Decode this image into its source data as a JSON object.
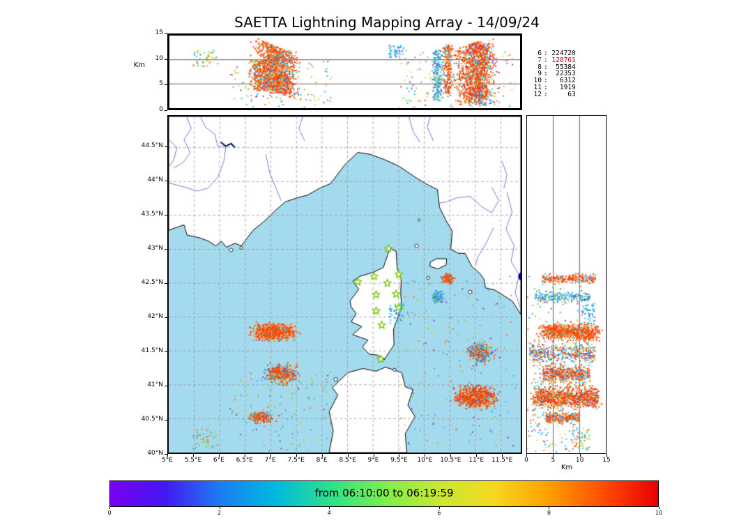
{
  "title": "SAETTA Lightning Mapping Array - 14/09/24",
  "axes": {
    "alt_label": "Km",
    "km_label_right": "Km",
    "alt_ticks": [
      {
        "v": 0,
        "t": "0"
      },
      {
        "v": 5,
        "t": "5"
      },
      {
        "v": 10,
        "t": "10"
      },
      {
        "v": 15,
        "t": "15"
      }
    ],
    "alt_gridlines": [
      5,
      10
    ],
    "lat_ticks": [
      {
        "v": 44.5,
        "t": "44.5°N"
      },
      {
        "v": 44.0,
        "t": "44°N"
      },
      {
        "v": 43.5,
        "t": "43.5°N"
      },
      {
        "v": 43.0,
        "t": "43°N"
      },
      {
        "v": 42.5,
        "t": "42.5°N"
      },
      {
        "v": 42.0,
        "t": "42°N"
      },
      {
        "v": 41.5,
        "t": "41.5°N"
      },
      {
        "v": 41.0,
        "t": "41°N"
      },
      {
        "v": 40.5,
        "t": "40.5°N"
      },
      {
        "v": 40.0,
        "t": "40°N"
      }
    ],
    "lon_ticks": [
      {
        "v": 5.0,
        "t": "5°E"
      },
      {
        "v": 5.5,
        "t": "5.5°E"
      },
      {
        "v": 6.0,
        "t": "6°E"
      },
      {
        "v": 6.5,
        "t": "6.5°E"
      },
      {
        "v": 7.0,
        "t": "7°E"
      },
      {
        "v": 7.5,
        "t": "7.5°E"
      },
      {
        "v": 8.0,
        "t": "8°E"
      },
      {
        "v": 8.5,
        "t": "8.5°E"
      },
      {
        "v": 9.0,
        "t": "9°E"
      },
      {
        "v": 9.5,
        "t": "9.5°E"
      },
      {
        "v": 10.0,
        "t": "10°E"
      },
      {
        "v": 10.5,
        "t": "10.5°E"
      },
      {
        "v": 11.0,
        "t": "11°E"
      },
      {
        "v": 11.5,
        "t": "11.5°E"
      }
    ]
  },
  "stats": [
    {
      "level": "6",
      "count": "224720",
      "color": "#000000"
    },
    {
      "level": "7",
      "count": "128761",
      "color": "#dd0000"
    },
    {
      "level": "8",
      "count": "55384",
      "color": "#000000"
    },
    {
      "level": "9",
      "count": "22353",
      "color": "#000000"
    },
    {
      "level": "10",
      "count": "6312",
      "color": "#000000"
    },
    {
      "level": "11",
      "count": "1919",
      "color": "#000000"
    },
    {
      "level": "12",
      "count": "63",
      "color": "#000000"
    }
  ],
  "colorbar": {
    "label": "from 06:10:00 to 06:19:59",
    "ticks": [
      {
        "v": 0,
        "t": "0"
      },
      {
        "v": 2,
        "t": "2"
      },
      {
        "v": 4,
        "t": "4"
      },
      {
        "v": 6,
        "t": "6"
      },
      {
        "v": 8,
        "t": "8"
      },
      {
        "v": 10,
        "t": "10"
      }
    ],
    "stops": [
      "#7a00f0",
      "#4418f2",
      "#1c7cf2",
      "#00b8e0",
      "#2ce08c",
      "#7cee4e",
      "#c8e832",
      "#f6d820",
      "#ffa000",
      "#ff4c00",
      "#e80000"
    ]
  },
  "chart_data": {
    "type": "scatter",
    "title": "SAETTA Lightning Mapping Array - 14/09/24",
    "time_window": {
      "from": "06:10:00",
      "to": "06:19:59"
    },
    "map_extent": {
      "lon": [
        5.0,
        11.89
      ],
      "lat": [
        40.0,
        44.96
      ]
    },
    "alt_extent_km": [
      0,
      15
    ],
    "source_counts": [
      [
        "6",
        224720
      ],
      [
        "7",
        128761
      ],
      [
        "8",
        55384
      ],
      [
        "9",
        22353
      ],
      [
        "10",
        6312
      ],
      [
        "11",
        1919
      ],
      [
        "12",
        63
      ]
    ],
    "stations_lonlat": [
      [
        9.3,
        43.01
      ],
      [
        8.7,
        42.52
      ],
      [
        9.02,
        42.6
      ],
      [
        9.28,
        42.5
      ],
      [
        9.5,
        42.63
      ],
      [
        9.06,
        42.33
      ],
      [
        9.45,
        42.34
      ],
      [
        9.06,
        42.09
      ],
      [
        9.5,
        42.14
      ],
      [
        9.17,
        41.88
      ],
      [
        9.15,
        41.38
      ]
    ],
    "clusters": [
      {
        "name": "west-corsica-main",
        "clon": 7.05,
        "dlon": 0.55,
        "clat": 41.78,
        "dlat": 0.16,
        "alt": [
          3.5,
          13
        ],
        "slant": -5,
        "n": 900,
        "colors": [
          [
            "#ff4500",
            0.66
          ],
          [
            "#ff7733",
            0.12
          ],
          [
            "#e8c87a",
            0.12
          ],
          [
            "#33bbee",
            0.06
          ],
          [
            "#9acd32",
            0.04
          ]
        ]
      },
      {
        "name": "west-corsica-south",
        "clon": 7.2,
        "dlon": 0.4,
        "clat": 41.16,
        "dlat": 0.18,
        "alt": [
          3,
          12
        ],
        "slant": 0,
        "n": 520,
        "colors": [
          [
            "#ff4500",
            0.52
          ],
          [
            "#e8c87a",
            0.16
          ],
          [
            "#33bbee",
            0.16
          ],
          [
            "#2277dd",
            0.06
          ],
          [
            "#9acd32",
            0.05
          ],
          [
            "#8844cc",
            0.05
          ]
        ]
      },
      {
        "name": "southwest",
        "clon": 6.8,
        "dlon": 0.32,
        "clat": 40.52,
        "dlat": 0.11,
        "alt": [
          3.5,
          10
        ],
        "slant": 0,
        "n": 260,
        "colors": [
          [
            "#ff4500",
            0.62
          ],
          [
            "#e8c87a",
            0.14
          ],
          [
            "#33bbee",
            0.12
          ],
          [
            "#8844cc",
            0.06
          ],
          [
            "#9acd32",
            0.06
          ]
        ]
      },
      {
        "name": "elba-storm",
        "clon": 10.47,
        "dlon": 0.15,
        "clat": 42.57,
        "dlat": 0.09,
        "alt": [
          3,
          13
        ],
        "slant": 0,
        "n": 240,
        "colors": [
          [
            "#ff4500",
            0.72
          ],
          [
            "#e8c87a",
            0.14
          ],
          [
            "#33bbee",
            0.14
          ]
        ]
      },
      {
        "name": "blue-column",
        "clon": 10.27,
        "dlon": 0.14,
        "clat": 42.3,
        "dlat": 0.11,
        "alt": [
          1.5,
          12
        ],
        "slant": 0,
        "n": 200,
        "colors": [
          [
            "#33bbee",
            0.42
          ],
          [
            "#2277dd",
            0.34
          ],
          [
            "#9acd32",
            0.1
          ],
          [
            "#e8c87a",
            0.14
          ]
        ]
      },
      {
        "name": "east-multicolor",
        "clon": 11.1,
        "dlon": 0.32,
        "clat": 41.47,
        "dlat": 0.2,
        "alt": [
          0.5,
          13
        ],
        "slant": 0,
        "n": 430,
        "colors": [
          [
            "#ff4500",
            0.26
          ],
          [
            "#e8c87a",
            0.2
          ],
          [
            "#33bbee",
            0.18
          ],
          [
            "#8844cc",
            0.16
          ],
          [
            "#2277dd",
            0.1
          ],
          [
            "#9acd32",
            0.1
          ]
        ]
      },
      {
        "name": "east-main",
        "clon": 11.0,
        "dlon": 0.52,
        "clat": 40.82,
        "dlat": 0.21,
        "alt": [
          1.5,
          13.5
        ],
        "slant": 3,
        "n": 1050,
        "colors": [
          [
            "#ff4500",
            0.58
          ],
          [
            "#e8c87a",
            0.16
          ],
          [
            "#ee2200",
            0.1
          ],
          [
            "#33bbee",
            0.08
          ],
          [
            "#9acd32",
            0.04
          ],
          [
            "#8844cc",
            0.04
          ]
        ]
      },
      {
        "name": "scatter-southwest",
        "clon": 7.2,
        "dlon": 1.0,
        "clat": 40.6,
        "dlat": 0.6,
        "alt": [
          0,
          10
        ],
        "slant": 0,
        "n": 130,
        "uniform": true,
        "colors": [
          [
            "#33bbee",
            0.3
          ],
          [
            "#9acd32",
            0.25
          ],
          [
            "#e8c87a",
            0.2
          ],
          [
            "#ff7733",
            0.15
          ],
          [
            "#8844cc",
            0.1
          ]
        ]
      },
      {
        "name": "scatter-east",
        "clon": 10.6,
        "dlon": 1.2,
        "clat": 41.3,
        "dlat": 1.3,
        "alt": [
          0,
          12
        ],
        "slant": 0,
        "n": 170,
        "uniform": true,
        "colors": [
          [
            "#33bbee",
            0.32
          ],
          [
            "#9acd32",
            0.2
          ],
          [
            "#e8c87a",
            0.2
          ],
          [
            "#ff7733",
            0.14
          ],
          [
            "#8844cc",
            0.14
          ]
        ]
      },
      {
        "name": "farwest-specks",
        "clon": 5.72,
        "dlon": 0.25,
        "clat": 40.2,
        "dlat": 0.15,
        "alt": [
          8.5,
          12
        ],
        "slant": 0,
        "n": 45,
        "uniform": true,
        "colors": [
          [
            "#9acd32",
            0.4
          ],
          [
            "#33bbee",
            0.3
          ],
          [
            "#ff7733",
            0.3
          ]
        ]
      },
      {
        "name": "corsica-east-specks",
        "clon": 9.46,
        "dlon": 0.15,
        "clat": 42.05,
        "dlat": 0.15,
        "alt": [
          10.5,
          13
        ],
        "slant": 0,
        "n": 45,
        "uniform": true,
        "colors": [
          [
            "#33bbee",
            0.7
          ],
          [
            "#2277dd",
            0.3
          ]
        ]
      }
    ]
  },
  "geo": {
    "sea_color": "#a4daee",
    "land_color": "#ffffff",
    "coast_color": "#000000",
    "river_color": "#5353cf",
    "lake_color": "#000099",
    "mainland": [
      [
        5.0,
        43.28
      ],
      [
        5.18,
        43.33
      ],
      [
        5.3,
        43.36
      ],
      [
        5.36,
        43.21
      ],
      [
        5.6,
        43.17
      ],
      [
        5.78,
        43.12
      ],
      [
        5.92,
        43.05
      ],
      [
        6.03,
        43.12
      ],
      [
        6.13,
        43.03
      ],
      [
        6.3,
        43.09
      ],
      [
        6.42,
        43.05
      ],
      [
        6.65,
        43.28
      ],
      [
        6.85,
        43.4
      ],
      [
        7.1,
        43.58
      ],
      [
        7.28,
        43.7
      ],
      [
        7.52,
        43.76
      ],
      [
        7.72,
        43.8
      ],
      [
        7.95,
        43.9
      ],
      [
        8.17,
        43.97
      ],
      [
        8.45,
        44.25
      ],
      [
        8.7,
        44.43
      ],
      [
        8.95,
        44.4
      ],
      [
        9.2,
        44.33
      ],
      [
        9.5,
        44.23
      ],
      [
        9.83,
        44.06
      ],
      [
        10.05,
        43.96
      ],
      [
        10.26,
        43.88
      ],
      [
        10.3,
        43.62
      ],
      [
        10.43,
        43.42
      ],
      [
        10.55,
        43.27
      ],
      [
        10.52,
        43.0
      ],
      [
        10.67,
        42.94
      ],
      [
        10.8,
        42.94
      ],
      [
        10.93,
        42.75
      ],
      [
        11.08,
        42.65
      ],
      [
        11.17,
        42.56
      ],
      [
        11.2,
        42.43
      ],
      [
        11.38,
        42.4
      ],
      [
        11.55,
        42.32
      ],
      [
        11.73,
        42.23
      ],
      [
        11.89,
        42.04
      ],
      [
        11.89,
        44.96
      ],
      [
        5.0,
        44.96
      ]
    ],
    "corsica": [
      [
        9.345,
        43.01
      ],
      [
        9.45,
        42.97
      ],
      [
        9.47,
        42.72
      ],
      [
        9.55,
        42.56
      ],
      [
        9.54,
        42.34
      ],
      [
        9.56,
        42.15
      ],
      [
        9.4,
        41.82
      ],
      [
        9.41,
        41.59
      ],
      [
        9.22,
        41.37
      ],
      [
        9.08,
        41.44
      ],
      [
        8.93,
        41.45
      ],
      [
        8.79,
        41.56
      ],
      [
        8.9,
        41.66
      ],
      [
        8.6,
        41.74
      ],
      [
        8.78,
        41.86
      ],
      [
        8.57,
        41.93
      ],
      [
        8.67,
        42.05
      ],
      [
        8.57,
        42.15
      ],
      [
        8.55,
        42.24
      ],
      [
        8.72,
        42.41
      ],
      [
        8.6,
        42.53
      ],
      [
        8.74,
        42.6
      ],
      [
        9.0,
        42.66
      ],
      [
        9.2,
        42.73
      ],
      [
        9.3,
        42.95
      ]
    ],
    "sardinia": [
      [
        8.14,
        40.0
      ],
      [
        8.22,
        40.32
      ],
      [
        8.14,
        40.6
      ],
      [
        8.31,
        40.85
      ],
      [
        8.2,
        40.96
      ],
      [
        8.51,
        41.18
      ],
      [
        8.8,
        41.24
      ],
      [
        9.06,
        41.2
      ],
      [
        9.24,
        41.26
      ],
      [
        9.56,
        41.18
      ],
      [
        9.63,
        40.97
      ],
      [
        9.78,
        40.93
      ],
      [
        9.68,
        40.7
      ],
      [
        9.82,
        40.53
      ],
      [
        9.63,
        40.28
      ],
      [
        9.66,
        40.0
      ]
    ],
    "elba": [
      [
        10.11,
        42.75
      ],
      [
        10.27,
        42.71
      ],
      [
        10.43,
        42.77
      ],
      [
        10.44,
        42.86
      ],
      [
        10.24,
        42.86
      ],
      [
        10.12,
        42.81
      ]
    ],
    "islands": [
      [
        9.85,
        43.05,
        0.035
      ],
      [
        9.9,
        43.43,
        0.02
      ],
      [
        10.08,
        42.58,
        0.03
      ],
      [
        10.31,
        42.33,
        0.025
      ],
      [
        10.9,
        42.37,
        0.035
      ],
      [
        6.22,
        42.99,
        0.035
      ],
      [
        6.42,
        43.02,
        0.028
      ],
      [
        9.42,
        41.22,
        0.03
      ],
      [
        8.27,
        41.08,
        0.035
      ]
    ],
    "lakes": [
      [
        11.93,
        42.6,
        0.09
      ]
    ],
    "lake_lines": [
      [
        [
          6.02,
          44.58
        ],
        [
          6.12,
          44.52
        ],
        [
          6.22,
          44.56
        ],
        [
          6.3,
          44.5
        ]
      ]
    ],
    "rivers": [
      [
        [
          5.35,
          44.96
        ],
        [
          5.44,
          44.78
        ],
        [
          5.3,
          44.62
        ],
        [
          5.42,
          44.42
        ],
        [
          5.28,
          44.28
        ],
        [
          5.1,
          44.2
        ]
      ],
      [
        [
          5.0,
          44.62
        ],
        [
          5.16,
          44.5
        ],
        [
          5.1,
          44.32
        ],
        [
          5.0,
          44.22
        ]
      ],
      [
        [
          5.0,
          43.98
        ],
        [
          5.3,
          43.92
        ],
        [
          5.56,
          43.86
        ],
        [
          5.76,
          43.9
        ],
        [
          5.96,
          44.06
        ],
        [
          6.08,
          44.3
        ],
        [
          6.12,
          44.52
        ]
      ],
      [
        [
          5.62,
          44.96
        ],
        [
          5.72,
          44.8
        ],
        [
          5.9,
          44.7
        ],
        [
          5.96,
          44.52
        ],
        [
          6.12,
          44.52
        ]
      ],
      [
        [
          6.9,
          44.4
        ],
        [
          6.98,
          44.12
        ],
        [
          7.1,
          43.9
        ],
        [
          7.2,
          43.72
        ]
      ],
      [
        [
          7.62,
          44.96
        ],
        [
          7.55,
          44.78
        ],
        [
          7.66,
          44.6
        ]
      ],
      [
        [
          9.7,
          44.96
        ],
        [
          9.78,
          44.74
        ],
        [
          9.92,
          44.58
        ]
      ],
      [
        [
          10.12,
          44.96
        ],
        [
          10.06,
          44.8
        ],
        [
          10.18,
          44.6
        ]
      ],
      [
        [
          11.32,
          43.92
        ],
        [
          11.46,
          43.72
        ],
        [
          11.32,
          43.54
        ],
        [
          11.14,
          43.62
        ],
        [
          10.9,
          43.78
        ],
        [
          10.64,
          43.76
        ],
        [
          10.44,
          43.7
        ],
        [
          10.28,
          43.68
        ]
      ],
      [
        [
          11.52,
          44.3
        ],
        [
          11.62,
          44.1
        ],
        [
          11.56,
          43.9
        ]
      ],
      [
        [
          11.62,
          43.84
        ],
        [
          11.72,
          43.55
        ],
        [
          11.6,
          43.3
        ],
        [
          11.76,
          43.05
        ],
        [
          11.7,
          42.82
        ],
        [
          11.86,
          42.62
        ],
        [
          11.78,
          42.36
        ],
        [
          11.89,
          42.12
        ]
      ],
      [
        [
          11.36,
          43.32
        ],
        [
          11.22,
          43.1
        ],
        [
          11.06,
          42.9
        ],
        [
          11.0,
          42.76
        ]
      ]
    ]
  }
}
